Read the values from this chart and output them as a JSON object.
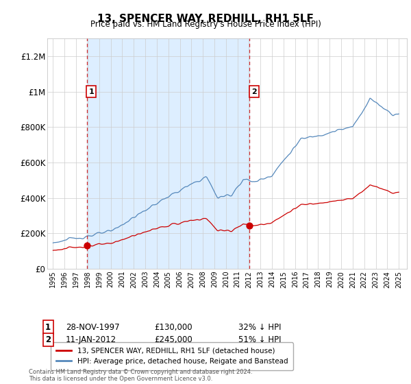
{
  "title": "13, SPENCER WAY, REDHILL, RH1 5LF",
  "subtitle": "Price paid vs. HM Land Registry's House Price Index (HPI)",
  "ylabel_ticks": [
    "£0",
    "£200K",
    "£400K",
    "£600K",
    "£800K",
    "£1M",
    "£1.2M"
  ],
  "ytick_values": [
    0,
    200000,
    400000,
    600000,
    800000,
    1000000,
    1200000
  ],
  "ylim": [
    0,
    1300000
  ],
  "sale1_date": "28-NOV-1997",
  "sale1_price": 130000,
  "sale2_date": "11-JAN-2012",
  "sale2_price": 245000,
  "sale1_pct": "32% ↓ HPI",
  "sale2_pct": "51% ↓ HPI",
  "legend_line1": "13, SPENCER WAY, REDHILL, RH1 5LF (detached house)",
  "legend_line2": "HPI: Average price, detached house, Reigate and Banstead",
  "footer": "Contains HM Land Registry data © Crown copyright and database right 2024.\nThis data is licensed under the Open Government Licence v3.0.",
  "line_color_red": "#cc0000",
  "line_color_blue": "#5588bb",
  "sale1_x": 1997.92,
  "sale2_x": 2012.04,
  "grid_color": "#cccccc",
  "dashed_color": "#cc0000",
  "shade_color": "#ddeeff",
  "number_box_color": "#cc0000"
}
